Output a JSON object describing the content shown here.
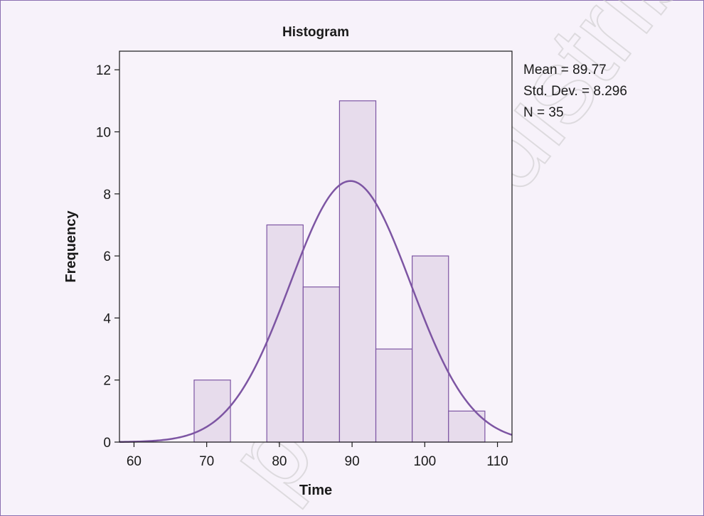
{
  "chart_data": {
    "type": "bar",
    "title": "Histogram",
    "xlabel": "Time",
    "ylabel": "Frequency",
    "xlim": [
      58,
      112
    ],
    "ylim": [
      0,
      12.6
    ],
    "x_ticks": [
      60,
      70,
      80,
      90,
      100,
      110
    ],
    "y_ticks": [
      0,
      2,
      4,
      6,
      8,
      10,
      12
    ],
    "bins": [
      {
        "start": 68.27,
        "end": 73.27,
        "count": 2
      },
      {
        "start": 73.27,
        "end": 78.27,
        "count": 0
      },
      {
        "start": 78.27,
        "end": 83.27,
        "count": 7
      },
      {
        "start": 83.27,
        "end": 88.27,
        "count": 5
      },
      {
        "start": 88.27,
        "end": 93.27,
        "count": 11
      },
      {
        "start": 93.27,
        "end": 98.27,
        "count": 3
      },
      {
        "start": 98.27,
        "end": 103.27,
        "count": 6
      },
      {
        "start": 103.27,
        "end": 108.27,
        "count": 1
      }
    ],
    "normal_curve": {
      "mean": 89.77,
      "sd": 8.296,
      "n": 35,
      "bin_width": 5
    },
    "stats": {
      "mean": "Mean = 89.77",
      "std": "Std. Dev. = 8.296",
      "n": "N = 35"
    },
    "grid": false,
    "legend": "none"
  },
  "colors": {
    "plot_background": "#f8f3fa",
    "bar_fill": "#e7dcec",
    "bar_stroke": "#7d55a3",
    "curve": "#7d55a3",
    "axis": "#1a1a1a"
  },
  "watermark": "post, or distribute"
}
